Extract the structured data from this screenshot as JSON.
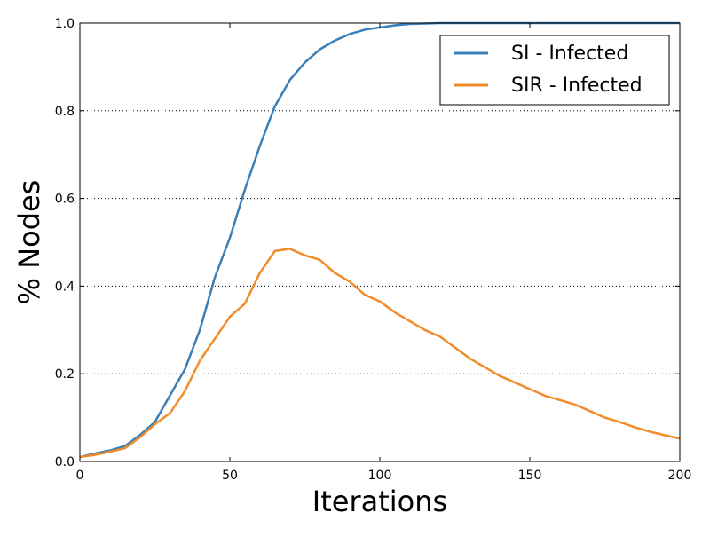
{
  "chart_data": {
    "type": "line",
    "title": "",
    "xlabel": "Iterations",
    "ylabel": "% Nodes",
    "xlim": [
      0,
      200
    ],
    "ylim": [
      0,
      1.0
    ],
    "x_ticks": [
      0,
      50,
      100,
      150,
      200
    ],
    "x_tick_labels": [
      "0",
      "50",
      "100",
      "150",
      "200"
    ],
    "y_ticks": [
      0,
      0.2,
      0.4,
      0.6,
      0.8,
      1.0
    ],
    "y_tick_labels": [
      "0.0",
      "0.2",
      "0.4",
      "0.6",
      "0.8",
      "1.0"
    ],
    "grid": "horizontal dotted",
    "legend_position": "top-right",
    "series": [
      {
        "name": "SI - Infected",
        "color": "#3a7fb7",
        "points": [
          [
            0,
            0.01
          ],
          [
            5,
            0.018
          ],
          [
            10,
            0.025
          ],
          [
            15,
            0.035
          ],
          [
            20,
            0.06
          ],
          [
            25,
            0.09
          ],
          [
            30,
            0.15
          ],
          [
            35,
            0.21
          ],
          [
            40,
            0.3
          ],
          [
            45,
            0.42
          ],
          [
            50,
            0.51
          ],
          [
            55,
            0.62
          ],
          [
            60,
            0.72
          ],
          [
            65,
            0.81
          ],
          [
            70,
            0.87
          ],
          [
            75,
            0.91
          ],
          [
            80,
            0.94
          ],
          [
            85,
            0.96
          ],
          [
            90,
            0.975
          ],
          [
            95,
            0.985
          ],
          [
            100,
            0.99
          ],
          [
            105,
            0.995
          ],
          [
            110,
            0.998
          ],
          [
            120,
            1.0
          ],
          [
            130,
            1.0
          ],
          [
            200,
            1.0
          ]
        ]
      },
      {
        "name": "SIR - Infected",
        "color": "#f28c2a",
        "points": [
          [
            0,
            0.01
          ],
          [
            5,
            0.015
          ],
          [
            10,
            0.022
          ],
          [
            15,
            0.03
          ],
          [
            20,
            0.055
          ],
          [
            25,
            0.085
          ],
          [
            30,
            0.11
          ],
          [
            35,
            0.16
          ],
          [
            40,
            0.23
          ],
          [
            45,
            0.28
          ],
          [
            50,
            0.33
          ],
          [
            55,
            0.36
          ],
          [
            60,
            0.43
          ],
          [
            65,
            0.48
          ],
          [
            70,
            0.485
          ],
          [
            75,
            0.47
          ],
          [
            80,
            0.46
          ],
          [
            85,
            0.43
          ],
          [
            90,
            0.41
          ],
          [
            95,
            0.38
          ],
          [
            100,
            0.365
          ],
          [
            105,
            0.34
          ],
          [
            110,
            0.32
          ],
          [
            115,
            0.3
          ],
          [
            120,
            0.285
          ],
          [
            125,
            0.26
          ],
          [
            130,
            0.235
          ],
          [
            135,
            0.215
          ],
          [
            140,
            0.195
          ],
          [
            145,
            0.18
          ],
          [
            150,
            0.165
          ],
          [
            155,
            0.15
          ],
          [
            160,
            0.14
          ],
          [
            165,
            0.13
          ],
          [
            170,
            0.115
          ],
          [
            175,
            0.1
          ],
          [
            180,
            0.09
          ],
          [
            185,
            0.078
          ],
          [
            190,
            0.068
          ],
          [
            195,
            0.06
          ],
          [
            200,
            0.052
          ]
        ]
      }
    ]
  }
}
